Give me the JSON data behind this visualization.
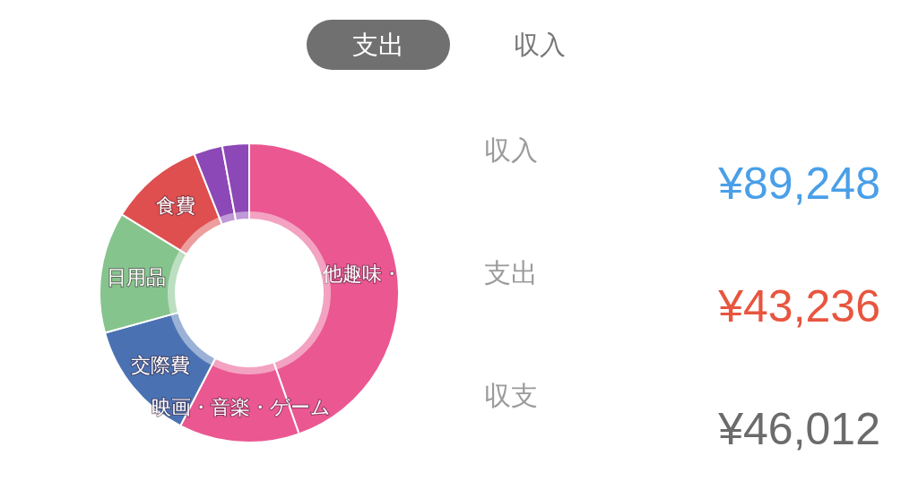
{
  "chart_data": [
    {
      "type": "donut",
      "categories": [
        "他趣味・",
        "映画・音楽・ゲーム",
        "交際費",
        "日用品",
        "食費",
        null,
        null
      ],
      "values": [
        44.6,
        13.0,
        13.1,
        13.1,
        10.2,
        3.1,
        2.9
      ],
      "colors": [
        "#ea5791",
        "#ea5791",
        "#4a72b3",
        "#86c48e",
        "#df4f4f",
        "#8c48b6",
        "#8c48b6"
      ],
      "annotations": [
        "支出",
        "収入"
      ]
    },
    {
      "type": "other",
      "annotations": [
        "収入",
        "¥89,248",
        "支出",
        "¥43,236",
        "収支",
        "¥46,012"
      ]
    }
  ]
}
